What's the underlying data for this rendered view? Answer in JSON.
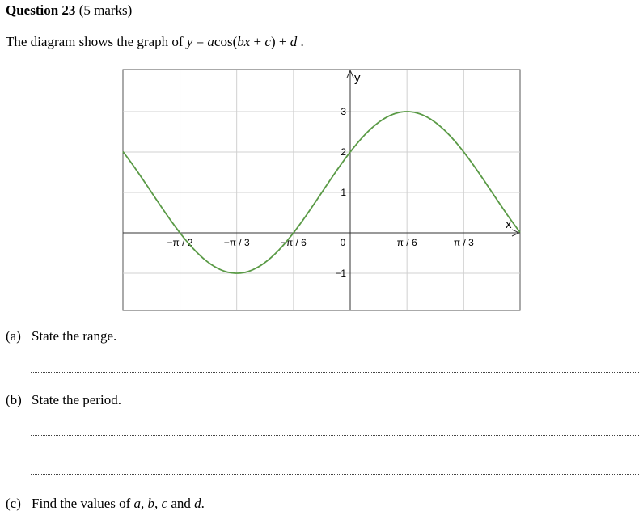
{
  "question": {
    "title": "Question 23",
    "marks": "(5 marks)"
  },
  "intro": {
    "text": "The diagram shows the graph of",
    "equation_lhs": "y",
    "equation_eq": " = ",
    "equation_rhs_a": "a",
    "equation_rhs_cos": "cos(",
    "equation_rhs_bx": "bx",
    "equation_rhs_plus1": " + ",
    "equation_rhs_c": "c",
    "equation_rhs_close": ")",
    "equation_rhs_plus2": " + ",
    "equation_rhs_d": "d",
    "period": " ."
  },
  "chart_data": {
    "type": "line",
    "xlabel": "x",
    "ylabel": "y",
    "function": "y = 2cos(2x - π/3) + 1",
    "x_range": [
      -2.09,
      1.57
    ],
    "xlim_pi_fraction": [
      -0.6667,
      0.5
    ],
    "ylim": [
      -2,
      4
    ],
    "x_ticks": [
      {
        "value": -1.5708,
        "label": "−π / 2"
      },
      {
        "value": -1.0472,
        "label": "−π / 3"
      },
      {
        "value": -0.5236,
        "label": "−π / 6"
      },
      {
        "value": 0,
        "label": "0"
      },
      {
        "value": 0.5236,
        "label": "π / 6"
      },
      {
        "value": 1.0472,
        "label": "π / 3"
      }
    ],
    "y_ticks": [
      {
        "value": -1,
        "label": "−1"
      },
      {
        "value": 1,
        "label": "1"
      },
      {
        "value": 2,
        "label": "2"
      },
      {
        "value": 3,
        "label": "3"
      }
    ],
    "series": [
      {
        "amplitude": 2,
        "angular_frequency": 2,
        "phase": -1.0472,
        "vertical_shift": 1,
        "color": "#5a9a46"
      }
    ],
    "grid": true,
    "grid_color": "#d0d0d0"
  },
  "parts": [
    {
      "label": "(a)",
      "text": "State the range."
    },
    {
      "label": "(b)",
      "text": "State the period."
    },
    {
      "label": "(c)",
      "text_start": "Find the values of ",
      "a": "a",
      "sep1": ", ",
      "b": "b",
      "sep2": ", ",
      "c": "c",
      "and": " and ",
      "d": "d",
      "end": "."
    }
  ]
}
